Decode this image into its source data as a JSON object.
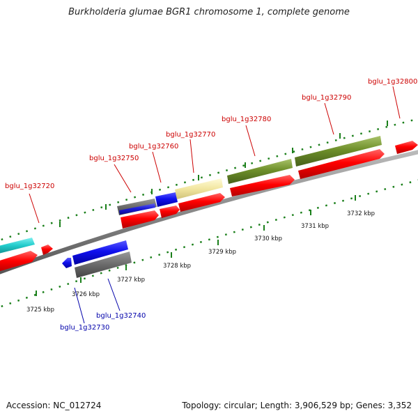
{
  "title": "Burkholderia glumae BGR1 chromosome 1, complete genome",
  "footer": {
    "accession": "Accession: NC_012724",
    "topology": "Topology: circular; Length: 3,906,529 bp; Genes: 3,352"
  },
  "ticks": [
    "3725 kbp",
    "3726 kbp",
    "3727 kbp",
    "3728 kbp",
    "3729 kbp",
    "3730 kbp",
    "3731 kbp",
    "3732 kbp"
  ],
  "gene_labels_forward": [
    "bglu_1g32720",
    "bglu_1g32750",
    "bglu_1g32760",
    "bglu_1g32770",
    "bglu_1g32780",
    "bglu_1g32790",
    "bglu_1g32800"
  ],
  "gene_labels_reverse": [
    "bglu_1g32730",
    "bglu_1g32740"
  ],
  "colors": {
    "forward_label": "#cc0000",
    "reverse_label": "#0000aa",
    "cds": "#ff0000",
    "backbone": "#888888",
    "tick": "#1a7f1a"
  }
}
